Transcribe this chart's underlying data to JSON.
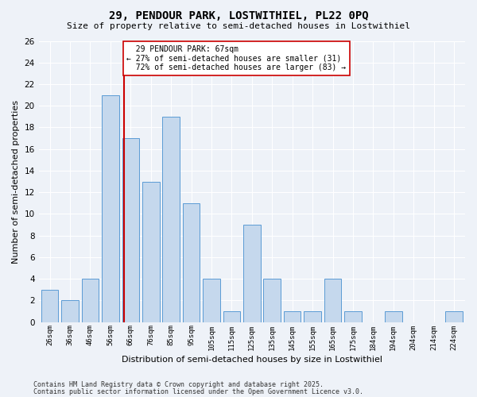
{
  "title1": "29, PENDOUR PARK, LOSTWITHIEL, PL22 0PQ",
  "title2": "Size of property relative to semi-detached houses in Lostwithiel",
  "xlabel": "Distribution of semi-detached houses by size in Lostwithiel",
  "ylabel": "Number of semi-detached properties",
  "bin_labels": [
    "26sqm",
    "36sqm",
    "46sqm",
    "56sqm",
    "66sqm",
    "76sqm",
    "85sqm",
    "95sqm",
    "105sqm",
    "115sqm",
    "125sqm",
    "135sqm",
    "145sqm",
    "155sqm",
    "165sqm",
    "175sqm",
    "184sqm",
    "194sqm",
    "204sqm",
    "214sqm",
    "224sqm"
  ],
  "values": [
    3,
    2,
    4,
    21,
    17,
    13,
    19,
    11,
    4,
    1,
    9,
    4,
    1,
    1,
    4,
    1,
    0,
    1,
    0,
    0,
    1
  ],
  "n_bins": 21,
  "bar_color": "#c5d8ed",
  "bar_edge_color": "#5b9bd5",
  "property_bin_idx": 4,
  "property_label": "29 PENDOUR PARK: 67sqm",
  "pct_smaller": 27,
  "count_smaller": 31,
  "pct_larger": 72,
  "count_larger": 83,
  "vline_color": "#cc0000",
  "annotation_box_color": "#cc0000",
  "ylim_max": 26,
  "yticks": [
    0,
    2,
    4,
    6,
    8,
    10,
    12,
    14,
    16,
    18,
    20,
    22,
    24,
    26
  ],
  "background_color": "#eef2f8",
  "grid_color": "#ffffff",
  "footer1": "Contains HM Land Registry data © Crown copyright and database right 2025.",
  "footer2": "Contains public sector information licensed under the Open Government Licence v3.0."
}
